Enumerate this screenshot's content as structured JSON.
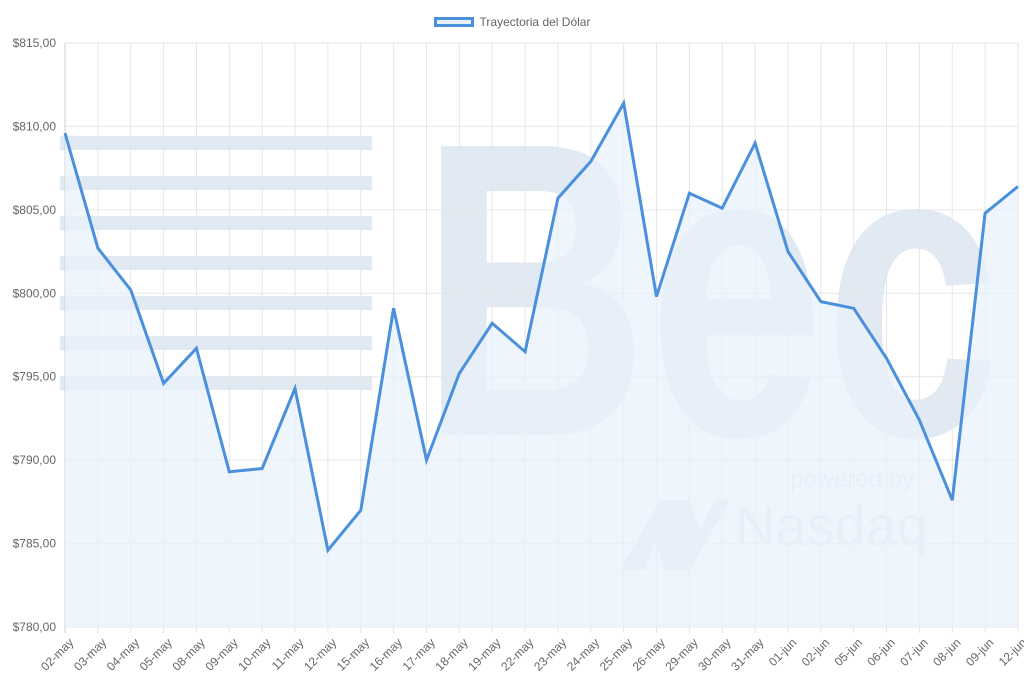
{
  "legend": {
    "label": "Trayectoria del Dólar"
  },
  "watermark": {
    "brand": "Bec",
    "powered_by": "powered by",
    "partner": "Nasdaq"
  },
  "colors": {
    "line": "#4a90dc",
    "fill": "#e8f1fb",
    "grid": "#e6e6e6",
    "axis_text": "#666666",
    "watermark": "#c9d9ea"
  },
  "chart_data": {
    "type": "line",
    "title": "",
    "legend_position": "top",
    "xlabel": "",
    "ylabel": "",
    "ylim": [
      780,
      815
    ],
    "y_ticks": [
      "$780,00",
      "$785,00",
      "$790,00",
      "$795,00",
      "$800,00",
      "$805,00",
      "$810,00",
      "$815,00"
    ],
    "y_tick_values": [
      780,
      785,
      790,
      795,
      800,
      805,
      810,
      815
    ],
    "grid": true,
    "fill": true,
    "categories": [
      "02-may",
      "03-may",
      "04-may",
      "05-may",
      "08-may",
      "09-may",
      "10-may",
      "11-may",
      "12-may",
      "15-may",
      "16-may",
      "17-may",
      "18-may",
      "19-may",
      "22-may",
      "23-may",
      "24-may",
      "25-may",
      "26-may",
      "29-may",
      "30-may",
      "31-may",
      "01-jun",
      "02-jun",
      "05-jun",
      "06-jun",
      "07-jun",
      "08-jun",
      "09-jun",
      "12-jun"
    ],
    "series": [
      {
        "name": "Trayectoria del Dólar",
        "values": [
          809.6,
          802.7,
          800.2,
          794.6,
          796.7,
          789.3,
          789.5,
          794.3,
          784.6,
          787.0,
          799.1,
          790.0,
          795.2,
          798.2,
          796.5,
          805.7,
          807.9,
          811.4,
          799.8,
          806.0,
          805.1,
          809.0,
          802.5,
          799.5,
          799.1,
          796.1,
          792.4,
          787.6,
          804.8,
          806.4
        ]
      }
    ]
  }
}
